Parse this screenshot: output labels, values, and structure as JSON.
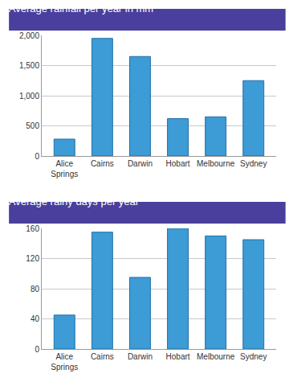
{
  "chart_data": [
    {
      "type": "bar",
      "title": "Average rainfall per year in mm",
      "categories": [
        "Alice Springs",
        "Cairns",
        "Darwin",
        "Hobart",
        "Melbourne",
        "Sydney"
      ],
      "values": [
        280,
        1950,
        1650,
        620,
        650,
        1250
      ],
      "color": "#3d9bd6",
      "ylim": [
        0,
        2000
      ],
      "yticks": [
        0,
        500,
        {
          "value": 1000,
          "label": "1,000"
        },
        {
          "value": 1500,
          "label": "1,500"
        },
        {
          "value": 2000,
          "label": "2,000"
        }
      ],
      "grid": true
    },
    {
      "type": "bar",
      "title": "Average rainy days per year",
      "categories": [
        "Alice Springs",
        "Cairns",
        "Darwin",
        "Hobart",
        "Melbourne",
        "Sydney"
      ],
      "values": [
        45,
        155,
        95,
        160,
        150,
        145
      ],
      "color": "#3d9bd6",
      "ylim": [
        0,
        160
      ],
      "yticks": [
        0,
        40,
        80,
        120,
        160
      ],
      "grid": true
    }
  ]
}
